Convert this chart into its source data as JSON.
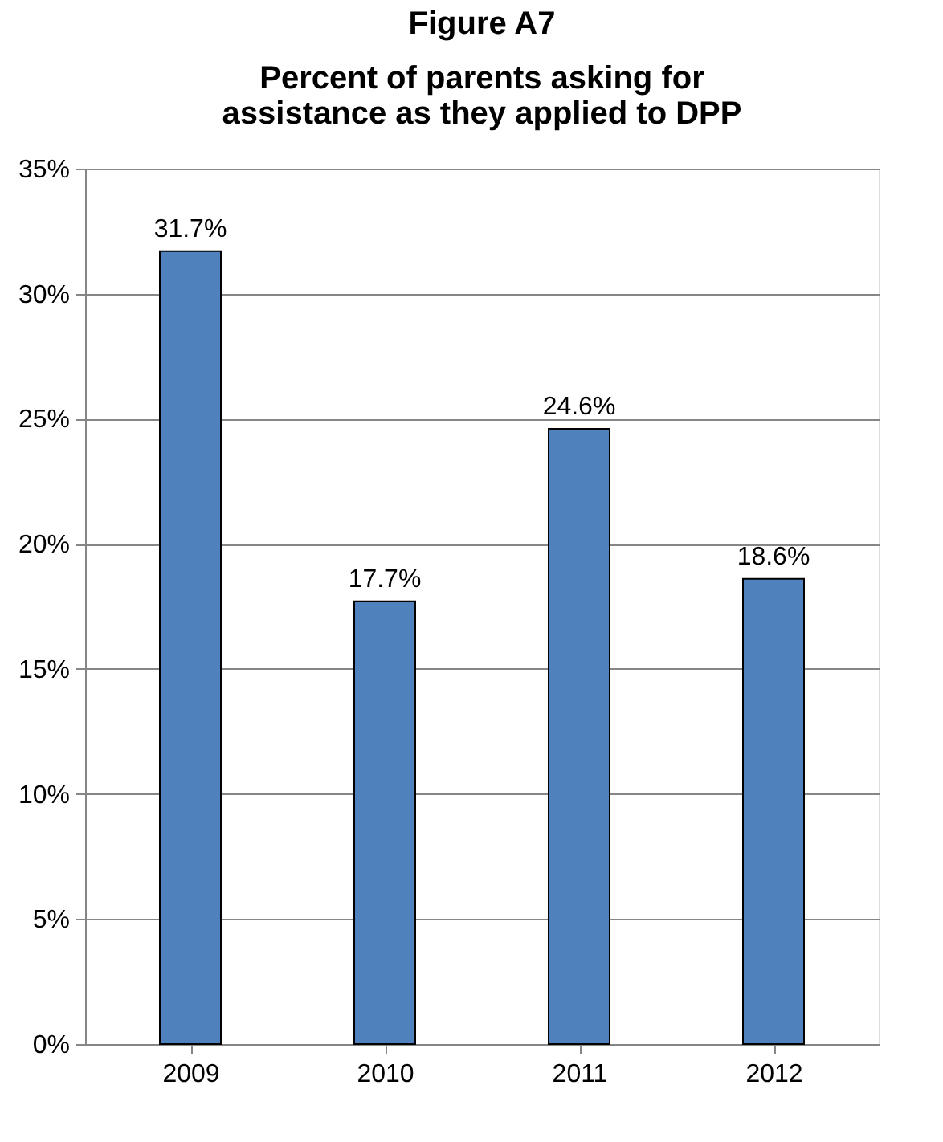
{
  "chart_data": {
    "type": "bar",
    "title": "Percent of parents asking for assistance as they applied to DPP",
    "annotations": [
      "Figure A7"
    ],
    "categories": [
      "2009",
      "2010",
      "2011",
      "2012"
    ],
    "values": [
      31.7,
      17.7,
      24.6,
      18.6
    ],
    "value_labels": [
      "31.7%",
      "17.7%",
      "24.6%",
      "18.6%"
    ],
    "color": "#4f81bd",
    "ylim": [
      0,
      35
    ],
    "yticks": [
      {
        "value": 0,
        "label": "0%"
      },
      {
        "value": 5,
        "label": "5%"
      },
      {
        "value": 10,
        "label": "10%"
      },
      {
        "value": 15,
        "label": "15%"
      },
      {
        "value": 20,
        "label": "20%"
      },
      {
        "value": 25,
        "label": "25%"
      },
      {
        "value": 30,
        "label": "30%"
      },
      {
        "value": 35,
        "label": "35%"
      }
    ],
    "grid": "y"
  }
}
